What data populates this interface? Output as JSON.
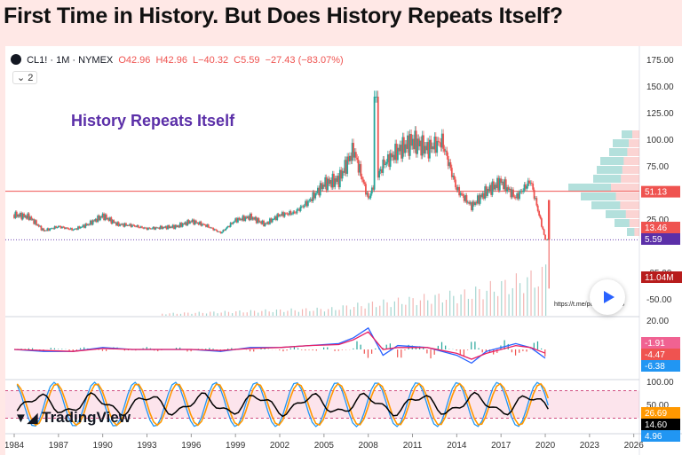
{
  "headline": "First Time in History. But Does History Repeats Itself?",
  "legend": {
    "symbol": "CL1! · 1M · NYMEX",
    "open": "O42.96",
    "high": "H42.96",
    "low": "L−40.32",
    "close": "C5.59",
    "change": "−27.43 (−83.07%)",
    "collapse_label": "2"
  },
  "annotation": "History Repeats Itself",
  "watermark_link": "https://t.me/purple_crypto",
  "brand": "TradingView",
  "colors": {
    "up": "#26a69a",
    "down": "#ef5350",
    "annotation": "#5b2fa8",
    "macd_line": "#2962ff",
    "signal_line": "#e91e63",
    "stoch_k": "#2196f3",
    "stoch_d": "#ff9800",
    "rsi": "#000000"
  },
  "chart_data": [
    {
      "type": "candlestick",
      "title": "",
      "x": [
        1984,
        1985,
        1986,
        1987,
        1988,
        1989,
        1990,
        1991,
        1992,
        1993,
        1994,
        1995,
        1996,
        1997,
        1998,
        1999,
        2000,
        2001,
        2002,
        2003,
        2004,
        2005,
        2006,
        2007,
        2008,
        2009,
        2010,
        2011,
        2012,
        2013,
        2014,
        2015,
        2016,
        2017,
        2018,
        2019,
        2020
      ],
      "close": [
        29,
        27,
        14,
        18,
        15,
        20,
        28,
        20,
        19,
        16,
        17,
        18,
        23,
        19,
        12,
        24,
        27,
        20,
        29,
        31,
        42,
        58,
        62,
        90,
        44,
        76,
        89,
        98,
        91,
        98,
        53,
        37,
        51,
        60,
        45,
        61,
        5.59
      ],
      "y_ticks": [
        "175.00",
        "150.00",
        "125.00",
        "100.00",
        "75.00",
        "50.00",
        "25.00",
        "-25.00",
        "-50.00"
      ],
      "ylim": [
        -50,
        175
      ],
      "price_labels": [
        "51.13",
        "13.46",
        "5.59",
        "11.04M"
      ],
      "volume_profile": true
    },
    {
      "type": "line",
      "name": "MACD",
      "x": [
        1984,
        1986,
        1988,
        1990,
        1992,
        1994,
        1996,
        1998,
        2000,
        2002,
        2004,
        2006,
        2007,
        2008,
        2009,
        2010,
        2012,
        2014,
        2015,
        2016,
        2018,
        2019,
        2020
      ],
      "series": [
        {
          "values": [
            0,
            -1,
            -1,
            1,
            0,
            0,
            0,
            -1,
            1,
            1,
            2,
            3,
            6,
            11,
            -3,
            2,
            1,
            -3,
            -7,
            -1,
            3,
            1,
            -4.47
          ]
        },
        {
          "values": [
            0,
            -0.5,
            -1,
            0.5,
            0,
            0,
            0,
            -0.5,
            0.5,
            1,
            2,
            2.5,
            5,
            9,
            0,
            1,
            1,
            -2,
            -5,
            -2,
            2,
            1,
            -1.91
          ]
        }
      ],
      "y_ticks": [
        "20.00"
      ],
      "labels": [
        "-1.91",
        "-4.47",
        "-6.38"
      ]
    },
    {
      "type": "line",
      "name": "Oscillator",
      "y_ticks": [
        "100.00",
        "50.00"
      ],
      "ylim": [
        0,
        100
      ],
      "labels": [
        "26.69",
        "14.60",
        "4.96"
      ]
    }
  ],
  "x_axis": [
    "1984",
    "1987",
    "1990",
    "1993",
    "1996",
    "1999",
    "2002",
    "2005",
    "2008",
    "2011",
    "2014",
    "2017",
    "2020",
    "2023",
    "2026"
  ]
}
